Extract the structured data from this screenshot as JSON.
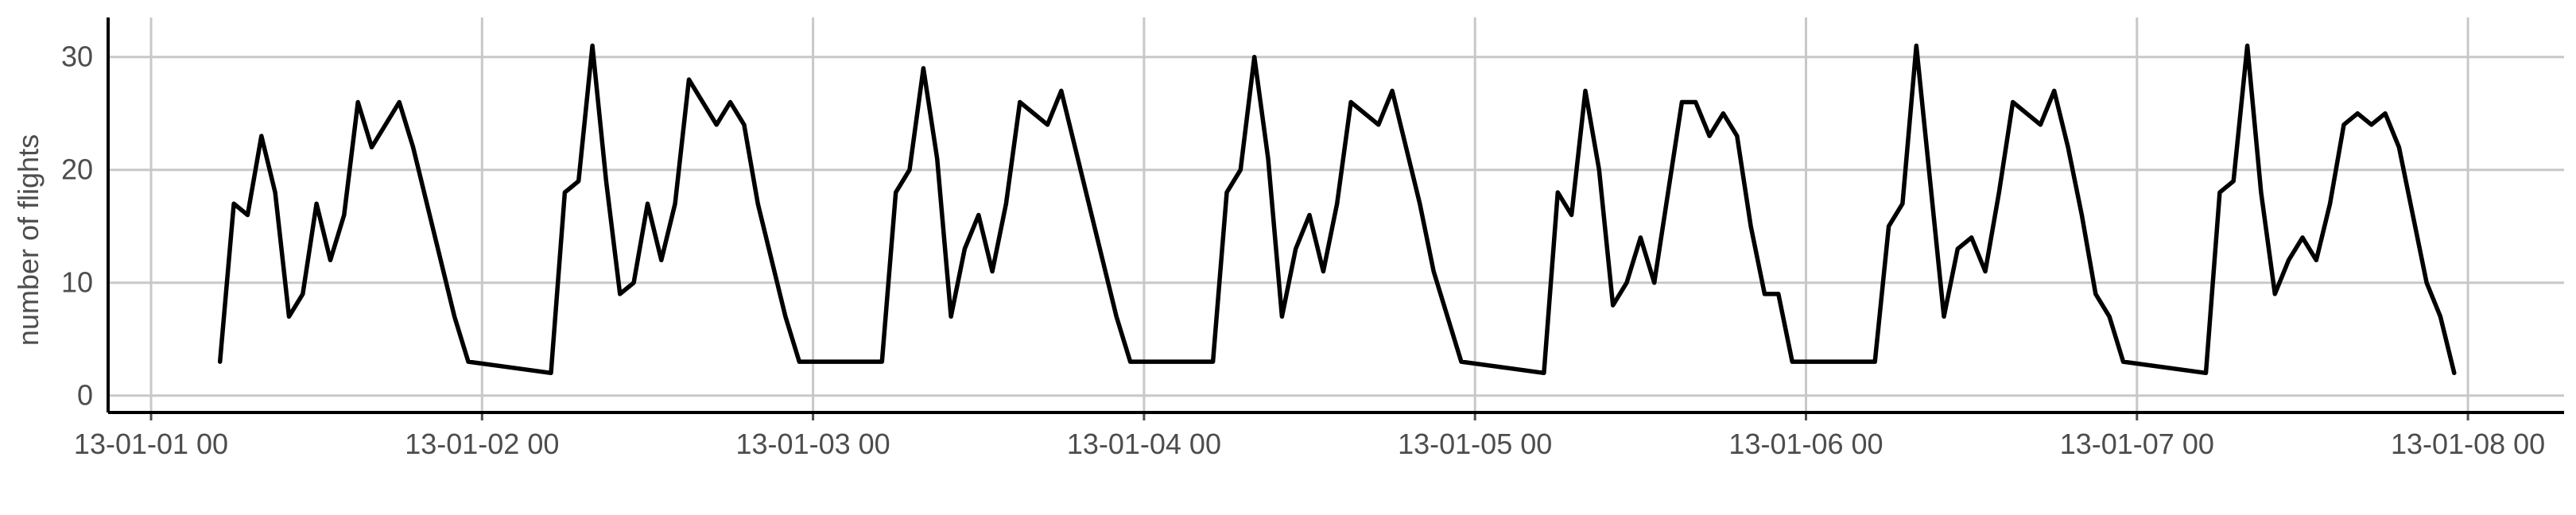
{
  "chart_data": {
    "type": "line",
    "title": "",
    "xlabel": "",
    "ylabel": "number of flights",
    "ylim": [
      -1.5,
      33.5
    ],
    "y_ticks": [
      0,
      10,
      20,
      30
    ],
    "x_ticks": [
      "13-01-01 00",
      "13-01-02 00",
      "13-01-03 00",
      "13-01-04 00",
      "13-01-05 00",
      "13-01-06 00",
      "13-01-07 00",
      "13-01-08 00"
    ],
    "grid": true,
    "legend": "none",
    "colors": {
      "line": "#000000",
      "grid": "#c8c8c8",
      "axis": "#000000",
      "text": "#4d4d4d"
    },
    "series": [
      {
        "points": [
          [
            "13-01-01 05:00",
            3
          ],
          [
            "13-01-01 06:00",
            17
          ],
          [
            "13-01-01 07:00",
            16
          ],
          [
            "13-01-01 08:00",
            23
          ],
          [
            "13-01-01 09:00",
            18
          ],
          [
            "13-01-01 10:00",
            7
          ],
          [
            "13-01-01 11:00",
            9
          ],
          [
            "13-01-01 12:00",
            17
          ],
          [
            "13-01-01 13:00",
            12
          ],
          [
            "13-01-01 14:00",
            16
          ],
          [
            "13-01-01 15:00",
            26
          ],
          [
            "13-01-01 16:00",
            22
          ],
          [
            "13-01-01 18:00",
            26
          ],
          [
            "13-01-01 19:00",
            22
          ],
          [
            "13-01-01 22:00",
            7
          ],
          [
            "13-01-01 23:00",
            3
          ],
          [
            "13-01-02 05:00",
            2
          ],
          [
            "13-01-02 06:00",
            18
          ],
          [
            "13-01-02 07:00",
            19
          ],
          [
            "13-01-02 08:00",
            31
          ],
          [
            "13-01-02 09:00",
            19
          ],
          [
            "13-01-02 10:00",
            9
          ],
          [
            "13-01-02 11:00",
            10
          ],
          [
            "13-01-02 12:00",
            17
          ],
          [
            "13-01-02 13:00",
            12
          ],
          [
            "13-01-02 14:00",
            17
          ],
          [
            "13-01-02 15:00",
            28
          ],
          [
            "13-01-02 17:00",
            24
          ],
          [
            "13-01-02 18:00",
            26
          ],
          [
            "13-01-02 19:00",
            24
          ],
          [
            "13-01-02 20:00",
            17
          ],
          [
            "13-01-02 22:00",
            7
          ],
          [
            "13-01-02 23:00",
            3
          ],
          [
            "13-01-03 05:00",
            3
          ],
          [
            "13-01-03 06:00",
            18
          ],
          [
            "13-01-03 07:00",
            20
          ],
          [
            "13-01-03 08:00",
            29
          ],
          [
            "13-01-03 09:00",
            21
          ],
          [
            "13-01-03 10:00",
            7
          ],
          [
            "13-01-03 11:00",
            13
          ],
          [
            "13-01-03 12:00",
            16
          ],
          [
            "13-01-03 13:00",
            11
          ],
          [
            "13-01-03 14:00",
            17
          ],
          [
            "13-01-03 15:00",
            26
          ],
          [
            "13-01-03 17:00",
            24
          ],
          [
            "13-01-03 18:00",
            27
          ],
          [
            "13-01-03 22:00",
            7
          ],
          [
            "13-01-03 23:00",
            3
          ],
          [
            "13-01-04 05:00",
            3
          ],
          [
            "13-01-04 06:00",
            18
          ],
          [
            "13-01-04 07:00",
            20
          ],
          [
            "13-01-04 08:00",
            30
          ],
          [
            "13-01-04 09:00",
            21
          ],
          [
            "13-01-04 10:00",
            7
          ],
          [
            "13-01-04 11:00",
            13
          ],
          [
            "13-01-04 12:00",
            16
          ],
          [
            "13-01-04 13:00",
            11
          ],
          [
            "13-01-04 14:00",
            17
          ],
          [
            "13-01-04 15:00",
            26
          ],
          [
            "13-01-04 17:00",
            24
          ],
          [
            "13-01-04 18:00",
            27
          ],
          [
            "13-01-04 20:00",
            17
          ],
          [
            "13-01-04 21:00",
            11
          ],
          [
            "13-01-04 23:00",
            3
          ],
          [
            "13-01-05 05:00",
            2
          ],
          [
            "13-01-05 06:00",
            18
          ],
          [
            "13-01-05 07:00",
            16
          ],
          [
            "13-01-05 08:00",
            27
          ],
          [
            "13-01-05 09:00",
            20
          ],
          [
            "13-01-05 10:00",
            8
          ],
          [
            "13-01-05 11:00",
            10
          ],
          [
            "13-01-05 12:00",
            14
          ],
          [
            "13-01-05 13:00",
            10
          ],
          [
            "13-01-05 15:00",
            26
          ],
          [
            "13-01-05 16:00",
            26
          ],
          [
            "13-01-05 17:00",
            23
          ],
          [
            "13-01-05 18:00",
            25
          ],
          [
            "13-01-05 19:00",
            23
          ],
          [
            "13-01-05 20:00",
            15
          ],
          [
            "13-01-05 21:00",
            9
          ],
          [
            "13-01-05 22:00",
            9
          ],
          [
            "13-01-05 23:00",
            3
          ],
          [
            "13-01-06 05:00",
            3
          ],
          [
            "13-01-06 06:00",
            15
          ],
          [
            "13-01-06 07:00",
            17
          ],
          [
            "13-01-06 08:00",
            31
          ],
          [
            "13-01-06 10:00",
            7
          ],
          [
            "13-01-06 11:00",
            13
          ],
          [
            "13-01-06 12:00",
            14
          ],
          [
            "13-01-06 13:00",
            11
          ],
          [
            "13-01-06 14:00",
            18
          ],
          [
            "13-01-06 15:00",
            26
          ],
          [
            "13-01-06 17:00",
            24
          ],
          [
            "13-01-06 18:00",
            27
          ],
          [
            "13-01-06 19:00",
            22
          ],
          [
            "13-01-06 20:00",
            16
          ],
          [
            "13-01-06 21:00",
            9
          ],
          [
            "13-01-06 22:00",
            7
          ],
          [
            "13-01-06 23:00",
            3
          ],
          [
            "13-01-07 05:00",
            2
          ],
          [
            "13-01-07 06:00",
            18
          ],
          [
            "13-01-07 07:00",
            19
          ],
          [
            "13-01-07 08:00",
            31
          ],
          [
            "13-01-07 09:00",
            18
          ],
          [
            "13-01-07 10:00",
            9
          ],
          [
            "13-01-07 11:00",
            12
          ],
          [
            "13-01-07 12:00",
            14
          ],
          [
            "13-01-07 13:00",
            12
          ],
          [
            "13-01-07 14:00",
            17
          ],
          [
            "13-01-07 15:00",
            24
          ],
          [
            "13-01-07 16:00",
            25
          ],
          [
            "13-01-07 17:00",
            24
          ],
          [
            "13-01-07 18:00",
            25
          ],
          [
            "13-01-07 19:00",
            22
          ],
          [
            "13-01-07 21:00",
            10
          ],
          [
            "13-01-07 22:00",
            7
          ],
          [
            "13-01-07 23:00",
            2
          ]
        ]
      }
    ]
  }
}
